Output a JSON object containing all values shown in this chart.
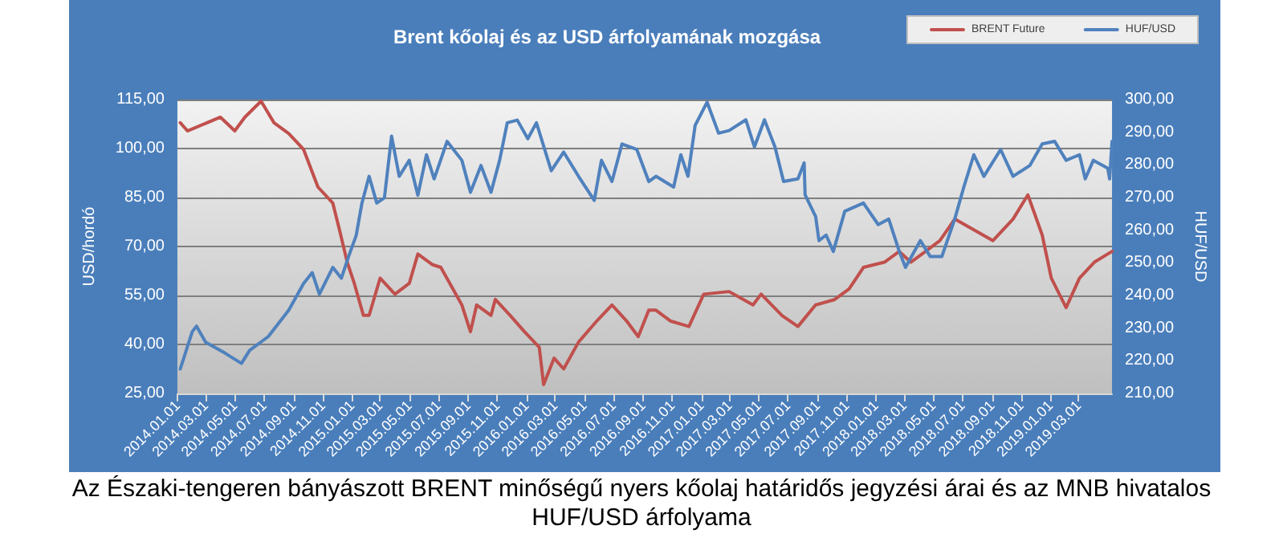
{
  "chart_data": {
    "type": "line",
    "title": "Brent kőolaj és az USD árfolyamának mozgása",
    "ylabel": "USD/hordó",
    "y2label": "HUF/USD",
    "annotations": [
      "Az Északi-tengeren bányászott BRENT minőségű nyers kőolaj határidős jegyzési árai és az MNB hivatalos HUF/USD árfolyama"
    ],
    "xlim": [
      "2014-01-01",
      "2019-05-10"
    ],
    "xticks": [
      {
        "value": "2014-01-01",
        "label": "2014.01.01"
      },
      {
        "value": "2014-03-01",
        "label": "2014.03.01"
      },
      {
        "value": "2014-05-01",
        "label": "2014.05.01"
      },
      {
        "value": "2014-07-01",
        "label": "2014.07.01"
      },
      {
        "value": "2014-09-01",
        "label": "2014.09.01"
      },
      {
        "value": "2014-11-01",
        "label": "2014.11.01"
      },
      {
        "value": "2015-01-01",
        "label": "2015.01.01"
      },
      {
        "value": "2015-03-01",
        "label": "2015.03.01"
      },
      {
        "value": "2015-05-01",
        "label": "2015.05.01"
      },
      {
        "value": "2015-07-01",
        "label": "2015.07.01"
      },
      {
        "value": "2015-09-01",
        "label": "2015.09.01"
      },
      {
        "value": "2015-11-01",
        "label": "2015.11.01"
      },
      {
        "value": "2016-01-01",
        "label": "2016.01.01"
      },
      {
        "value": "2016-03-01",
        "label": "2016.03.01"
      },
      {
        "value": "2016-05-01",
        "label": "2016.05.01"
      },
      {
        "value": "2016-07-01",
        "label": "2016.07.01"
      },
      {
        "value": "2016-09-01",
        "label": "2016.09.01"
      },
      {
        "value": "2016-11-01",
        "label": "2016.11.01"
      },
      {
        "value": "2017-01-01",
        "label": "2017.01.01"
      },
      {
        "value": "2017-03-01",
        "label": "2017.03.01"
      },
      {
        "value": "2017-05-01",
        "label": "2017.05.01"
      },
      {
        "value": "2017-07-01",
        "label": "2017.07.01"
      },
      {
        "value": "2017-09-01",
        "label": "2017.09.01"
      },
      {
        "value": "2017-11-01",
        "label": "2017.11.01"
      },
      {
        "value": "2018-01-01",
        "label": "2018.01.01"
      },
      {
        "value": "2018-03-01",
        "label": "2018.03.01"
      },
      {
        "value": "2018-05-01",
        "label": "2018.05.01"
      },
      {
        "value": "2018-07-01",
        "label": "2018.07.01"
      },
      {
        "value": "2018-09-01",
        "label": "2018.09.01"
      },
      {
        "value": "2018-11-01",
        "label": "2018.11.01"
      },
      {
        "value": "2019-01-01",
        "label": "2019.01.01"
      },
      {
        "value": "2019-03-01",
        "label": "2019.03.01"
      }
    ],
    "ylim": [
      25,
      115
    ],
    "yticks": [
      {
        "value": 25,
        "label": "25,00"
      },
      {
        "value": 40,
        "label": "40,00"
      },
      {
        "value": 55,
        "label": "55,00"
      },
      {
        "value": 70,
        "label": "70,00"
      },
      {
        "value": 85,
        "label": "85,00"
      },
      {
        "value": 100,
        "label": "100,00"
      },
      {
        "value": 115,
        "label": "115,00"
      }
    ],
    "y2lim": [
      210,
      300
    ],
    "y2ticks": [
      {
        "value": 210,
        "label": "210,00"
      },
      {
        "value": 220,
        "label": "220,00"
      },
      {
        "value": 230,
        "label": "230,00"
      },
      {
        "value": 240,
        "label": "240,00"
      },
      {
        "value": 250,
        "label": "250,00"
      },
      {
        "value": 260,
        "label": "260,00"
      },
      {
        "value": 270,
        "label": "270,00"
      },
      {
        "value": 280,
        "label": "280,00"
      },
      {
        "value": 290,
        "label": "290,00"
      },
      {
        "value": 300,
        "label": "300,00"
      }
    ],
    "grid": "y",
    "legend": "top right",
    "marker": "none",
    "line_style": "solid",
    "series": [
      {
        "name": "BRENT Future",
        "color": "#c0504d",
        "x": [
          "2014-01-07",
          "2014-01-22",
          "2014-04-01",
          "2014-05-01",
          "2014-05-22",
          "2014-06-25",
          "2014-07-22",
          "2014-08-22",
          "2014-09-22",
          "2014-10-22",
          "2014-11-22",
          "2014-12-06",
          "2014-12-22",
          "2015-01-06",
          "2015-01-25",
          "2015-02-06",
          "2015-03-01",
          "2015-04-01",
          "2015-05-01",
          "2015-05-19",
          "2015-06-19",
          "2015-07-06",
          "2015-08-19",
          "2015-09-06",
          "2015-09-19",
          "2015-10-19",
          "2015-10-28",
          "2015-11-28",
          "2015-12-28",
          "2016-01-28",
          "2016-02-06",
          "2016-02-28",
          "2016-03-19",
          "2016-04-19",
          "2016-05-28",
          "2016-06-28",
          "2016-07-28",
          "2016-08-22",
          "2016-09-13",
          "2016-09-28",
          "2016-10-28",
          "2016-12-06",
          "2017-01-06",
          "2017-02-28",
          "2017-04-19",
          "2017-05-06",
          "2017-06-19",
          "2017-07-22",
          "2017-08-28",
          "2017-10-06",
          "2017-11-06",
          "2017-12-06",
          "2018-01-19",
          "2018-02-19",
          "2018-03-15",
          "2018-04-15",
          "2018-05-15",
          "2018-06-15",
          "2018-07-25",
          "2018-09-03",
          "2018-10-15",
          "2018-11-15",
          "2018-12-15",
          "2019-01-03",
          "2019-02-03",
          "2019-03-03",
          "2019-04-03",
          "2019-05-10"
        ],
        "values": [
          107.9,
          105.4,
          109.6,
          105.4,
          109.6,
          114.5,
          107.9,
          104.6,
          99.7,
          88.2,
          83.3,
          75.1,
          65.3,
          58.7,
          48.9,
          48.9,
          60.3,
          55.4,
          58.7,
          67.7,
          64.4,
          63.6,
          52.1,
          43.9,
          52.1,
          48.9,
          53.8,
          48.9,
          43.9,
          39.1,
          27.7,
          35.8,
          32.5,
          40.7,
          47.3,
          52.1,
          47.3,
          42.4,
          50.5,
          50.5,
          47.2,
          45.5,
          55.4,
          56.2,
          52.1,
          55.4,
          48.8,
          45.5,
          52.1,
          53.7,
          57.0,
          63.6,
          65.2,
          68.5,
          65.2,
          68.5,
          71.8,
          78.4,
          75.1,
          71.8,
          78.4,
          85.8,
          73.5,
          60.3,
          51.3,
          60.3,
          65.2,
          68.5
        ]
      },
      {
        "name": "HUF/USD",
        "color": "#4f81bd",
        "axis": "y2",
        "x": [
          "2014-01-07",
          "2014-02-01",
          "2014-02-10",
          "2014-03-01",
          "2014-04-10",
          "2014-05-15",
          "2014-06-01",
          "2014-07-10",
          "2014-08-22",
          "2014-09-22",
          "2014-10-10",
          "2014-10-25",
          "2014-11-22",
          "2014-12-10",
          "2014-12-25",
          "2015-01-10",
          "2015-01-22",
          "2015-02-06",
          "2015-02-22",
          "2015-03-10",
          "2015-03-25",
          "2015-04-10",
          "2015-05-01",
          "2015-05-19",
          "2015-06-06",
          "2015-06-22",
          "2015-07-19",
          "2015-08-19",
          "2015-09-06",
          "2015-09-28",
          "2015-10-19",
          "2015-11-06",
          "2015-11-22",
          "2015-12-13",
          "2016-01-04",
          "2016-01-22",
          "2016-02-22",
          "2016-03-19",
          "2016-04-19",
          "2016-05-22",
          "2016-06-06",
          "2016-06-28",
          "2016-07-19",
          "2016-08-19",
          "2016-09-13",
          "2016-09-28",
          "2016-11-04",
          "2016-11-19",
          "2016-12-04",
          "2016-12-19",
          "2017-01-13",
          "2017-02-06",
          "2017-02-28",
          "2017-04-04",
          "2017-04-22",
          "2017-05-13",
          "2017-06-04",
          "2017-06-22",
          "2017-07-22",
          "2017-08-04",
          "2017-08-06",
          "2017-08-28",
          "2017-09-04",
          "2017-09-19",
          "2017-10-04",
          "2017-10-28",
          "2017-12-06",
          "2018-01-06",
          "2018-01-28",
          "2018-02-19",
          "2018-03-04",
          "2018-04-04",
          "2018-04-25",
          "2018-05-19",
          "2018-06-15",
          "2018-07-04",
          "2018-07-25",
          "2018-08-15",
          "2018-09-19",
          "2018-10-15",
          "2018-11-19",
          "2018-12-15",
          "2019-01-10",
          "2019-02-03",
          "2019-03-03",
          "2019-03-15",
          "2019-04-01",
          "2019-05-01",
          "2019-05-05",
          "2019-05-10"
        ],
        "values": [
          217.5,
          228.9,
          230.6,
          225.7,
          222.4,
          219.2,
          223.2,
          227.4,
          235.5,
          243.7,
          247.0,
          240.4,
          248.6,
          245.3,
          251.9,
          258.4,
          268.3,
          276.5,
          268.3,
          269.9,
          288.8,
          276.5,
          281.4,
          270.7,
          283.1,
          275.7,
          287.2,
          281.4,
          271.6,
          279.8,
          271.6,
          281.4,
          292.9,
          293.7,
          288.0,
          292.9,
          278.2,
          283.9,
          276.5,
          269.1,
          281.4,
          274.9,
          286.4,
          284.7,
          274.9,
          276.5,
          273.2,
          283.1,
          276.5,
          292.1,
          299.2,
          289.7,
          290.5,
          293.8,
          285.5,
          293.8,
          285.5,
          274.9,
          275.7,
          280.6,
          270.8,
          264.2,
          256.8,
          258.5,
          253.5,
          265.8,
          268.3,
          261.7,
          263.4,
          253.5,
          248.6,
          256.8,
          251.9,
          251.9,
          263.4,
          273.2,
          283.1,
          276.5,
          284.7,
          276.5,
          279.8,
          286.4,
          287.2,
          281.4,
          283.1,
          275.7,
          281.4,
          279.0,
          275.7,
          287.2
        ]
      }
    ]
  }
}
